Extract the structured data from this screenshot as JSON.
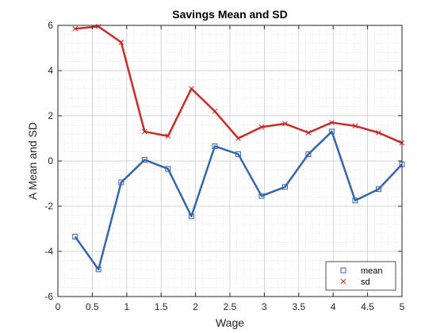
{
  "chart_data": {
    "type": "line",
    "title": "Savings Mean and SD",
    "xlabel": "Wage",
    "ylabel": "A Mean and SD",
    "xlim": [
      0,
      5
    ],
    "ylim": [
      -6,
      6
    ],
    "xticks": [
      "0",
      "0.5",
      "1",
      "1.5",
      "2",
      "2.5",
      "3",
      "3.5",
      "4",
      "4.5",
      "5"
    ],
    "yticks": [
      "-6",
      "-4",
      "-2",
      "0",
      "2",
      "4",
      "6"
    ],
    "grid": true,
    "minor_grid": true,
    "legend_position": "bottom-right",
    "x": [
      0.25,
      0.59,
      0.92,
      1.26,
      1.6,
      1.94,
      2.28,
      2.62,
      2.96,
      3.3,
      3.64,
      3.98,
      4.32,
      4.66,
      5.0
    ],
    "series": [
      {
        "name": "mean",
        "marker": "square",
        "color": "#3465ad",
        "values": [
          -3.35,
          -4.8,
          -0.95,
          0.05,
          -0.35,
          -2.45,
          0.65,
          0.3,
          -1.55,
          -1.15,
          0.3,
          1.3,
          -1.75,
          -1.25,
          -0.15
        ]
      },
      {
        "name": "sd",
        "marker": "x",
        "color": "#c92a2a",
        "values": [
          5.85,
          5.95,
          5.25,
          1.3,
          1.1,
          3.2,
          2.2,
          1.0,
          1.5,
          1.65,
          1.25,
          1.7,
          1.55,
          1.25,
          0.8
        ]
      }
    ]
  }
}
